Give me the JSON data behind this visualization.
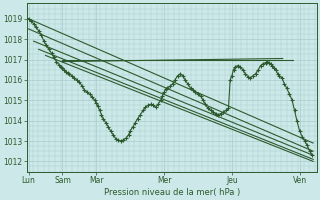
{
  "background_color": "#cce8e8",
  "grid_color": "#a8cccc",
  "line_color": "#2d5a2d",
  "ylabel": "Pression niveau de la mer( hPa )",
  "ylim": [
    1011.5,
    1019.7
  ],
  "yticks": [
    1012,
    1013,
    1014,
    1015,
    1016,
    1017,
    1018,
    1019
  ],
  "major_xtick_positions": [
    0,
    1,
    2,
    4,
    6,
    8
  ],
  "major_xtick_labels": [
    "Lun",
    "Sam",
    "Mar",
    "Mer",
    "Jeu",
    "Ven"
  ],
  "xlim": [
    -0.05,
    8.5
  ],
  "straight_lines": [
    {
      "x": [
        0.0,
        8.4
      ],
      "y": [
        1019.0,
        1012.9
      ]
    },
    {
      "x": [
        0.0,
        8.4
      ],
      "y": [
        1018.5,
        1012.5
      ]
    },
    {
      "x": [
        0.15,
        8.4
      ],
      "y": [
        1017.9,
        1012.3
      ]
    },
    {
      "x": [
        0.3,
        8.4
      ],
      "y": [
        1017.5,
        1012.1
      ]
    },
    {
      "x": [
        0.5,
        8.4
      ],
      "y": [
        1017.2,
        1012.0
      ]
    },
    {
      "x": [
        1.0,
        7.8
      ],
      "y": [
        1017.0,
        1017.0
      ]
    },
    {
      "x": [
        1.0,
        7.5
      ],
      "y": [
        1016.9,
        1017.05
      ]
    }
  ],
  "wavy_x": [
    0.0,
    0.08,
    0.15,
    0.22,
    0.3,
    0.38,
    0.45,
    0.52,
    0.6,
    0.68,
    0.75,
    0.82,
    0.9,
    0.95,
    1.0,
    1.05,
    1.1,
    1.15,
    1.2,
    1.28,
    1.35,
    1.42,
    1.5,
    1.58,
    1.65,
    1.72,
    1.8,
    1.88,
    1.95,
    2.0,
    2.05,
    2.1,
    2.15,
    2.2,
    2.28,
    2.35,
    2.42,
    2.5,
    2.58,
    2.65,
    2.72,
    2.8,
    2.88,
    2.95,
    3.0,
    3.08,
    3.15,
    3.22,
    3.3,
    3.38,
    3.45,
    3.52,
    3.6,
    3.68,
    3.75,
    3.82,
    3.9,
    3.95,
    4.0,
    4.05,
    4.1,
    4.18,
    4.25,
    4.32,
    4.4,
    4.48,
    4.55,
    4.62,
    4.7,
    4.78,
    4.85,
    4.92,
    5.0,
    5.08,
    5.15,
    5.22,
    5.3,
    5.38,
    5.45,
    5.52,
    5.6,
    5.68,
    5.75,
    5.82,
    5.9,
    5.95,
    6.0,
    6.05,
    6.1,
    6.18,
    6.25,
    6.32,
    6.4,
    6.48,
    6.55,
    6.62,
    6.7,
    6.78,
    6.85,
    6.92,
    7.0,
    7.05,
    7.1,
    7.15,
    7.2,
    7.25,
    7.3,
    7.35,
    7.4,
    7.48,
    7.55,
    7.62,
    7.7,
    7.78,
    7.85,
    7.92,
    8.0,
    8.08,
    8.15,
    8.22,
    8.3,
    8.38
  ],
  "wavy_y": [
    1019.0,
    1018.9,
    1018.75,
    1018.6,
    1018.4,
    1018.2,
    1017.9,
    1017.7,
    1017.5,
    1017.3,
    1017.1,
    1016.9,
    1016.75,
    1016.65,
    1016.6,
    1016.5,
    1016.4,
    1016.35,
    1016.3,
    1016.2,
    1016.1,
    1016.0,
    1015.9,
    1015.7,
    1015.5,
    1015.4,
    1015.3,
    1015.15,
    1015.0,
    1014.85,
    1014.7,
    1014.5,
    1014.3,
    1014.1,
    1013.9,
    1013.7,
    1013.5,
    1013.3,
    1013.1,
    1013.05,
    1013.0,
    1013.05,
    1013.15,
    1013.3,
    1013.5,
    1013.7,
    1013.9,
    1014.1,
    1014.3,
    1014.5,
    1014.65,
    1014.75,
    1014.8,
    1014.75,
    1014.65,
    1014.8,
    1015.0,
    1015.2,
    1015.4,
    1015.55,
    1015.6,
    1015.7,
    1015.8,
    1016.0,
    1016.2,
    1016.3,
    1016.2,
    1016.0,
    1015.8,
    1015.6,
    1015.5,
    1015.4,
    1015.3,
    1015.2,
    1015.0,
    1014.8,
    1014.6,
    1014.5,
    1014.4,
    1014.35,
    1014.3,
    1014.35,
    1014.4,
    1014.5,
    1014.6,
    1016.0,
    1016.2,
    1016.5,
    1016.65,
    1016.7,
    1016.65,
    1016.5,
    1016.3,
    1016.15,
    1016.1,
    1016.2,
    1016.3,
    1016.5,
    1016.7,
    1016.8,
    1016.85,
    1016.9,
    1016.85,
    1016.8,
    1016.7,
    1016.6,
    1016.5,
    1016.3,
    1016.2,
    1016.1,
    1015.8,
    1015.6,
    1015.3,
    1015.0,
    1014.5,
    1014.0,
    1013.5,
    1013.2,
    1013.0,
    1012.8,
    1012.5,
    1012.3
  ]
}
